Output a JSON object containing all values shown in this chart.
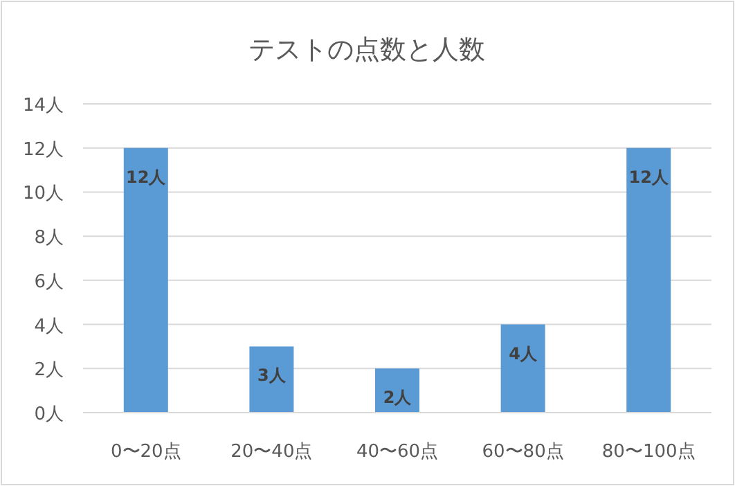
{
  "chart_data": {
    "type": "bar",
    "title": "テストの点数と人数",
    "categories": [
      "0〜20点",
      "20〜40点",
      "40〜60点",
      "60〜80点",
      "80〜100点"
    ],
    "values": [
      12,
      3,
      2,
      4,
      12
    ],
    "color": "#5b9bd5",
    "value_labels": [
      "12人",
      "3人",
      "2人",
      "4人",
      "12人"
    ],
    "ylim": [
      0,
      14
    ],
    "yticks": [
      {
        "value": 0,
        "label": "0人"
      },
      {
        "value": 2,
        "label": "2人"
      },
      {
        "value": 4,
        "label": "4人"
      },
      {
        "value": 6,
        "label": "6人"
      },
      {
        "value": 8,
        "label": "8人"
      },
      {
        "value": 10,
        "label": "10人"
      },
      {
        "value": 12,
        "label": "12人"
      },
      {
        "value": 14,
        "label": "14人"
      }
    ],
    "grid": "y"
  }
}
